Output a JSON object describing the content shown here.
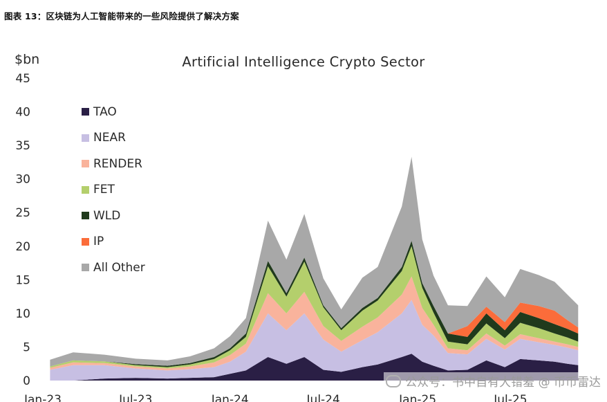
{
  "heading": "图表 13：区块链为人工智能带来的一些风险提供了解决方案",
  "watermark": "公众号：书中自有大错羞 @ 币币雷达",
  "chart_data": {
    "type": "area",
    "stacked": true,
    "title": "Artificial Intelligence Crypto Sector",
    "ylabel": "$bn",
    "ylim": [
      0,
      45
    ],
    "yticks": [
      0,
      5,
      10,
      15,
      20,
      25,
      30,
      35,
      40,
      45
    ],
    "xlim": [
      "2023-01-01",
      "2025-11-15"
    ],
    "xticks": [
      {
        "label": "Jan-23",
        "date": "2023-01-01"
      },
      {
        "label": "Jul-23",
        "date": "2023-07-01"
      },
      {
        "label": "Jan-24",
        "date": "2024-01-01"
      },
      {
        "label": "Jul-24",
        "date": "2024-07-01"
      },
      {
        "label": "Jan-25",
        "date": "2025-01-01"
      },
      {
        "label": "Jul-25",
        "date": "2025-07-01"
      }
    ],
    "grid": false,
    "legend_position": "upper-left",
    "x": [
      "2023-01-15",
      "2023-03-01",
      "2023-05-01",
      "2023-07-01",
      "2023-09-01",
      "2023-10-15",
      "2023-12-01",
      "2024-01-01",
      "2024-02-01",
      "2024-03-15",
      "2024-04-20",
      "2024-05-25",
      "2024-07-01",
      "2024-08-05",
      "2024-09-15",
      "2024-10-15",
      "2024-12-01",
      "2024-12-20",
      "2025-01-10",
      "2025-02-01",
      "2025-03-01",
      "2025-04-08",
      "2025-05-15",
      "2025-06-20",
      "2025-07-20",
      "2025-08-25",
      "2025-09-25",
      "2025-10-20",
      "2025-11-10"
    ],
    "series": [
      {
        "name": "TAO",
        "color": "#2a1f45",
        "values": [
          0,
          0,
          0.3,
          0.4,
          0.3,
          0.4,
          0.5,
          1.0,
          1.5,
          3.5,
          2.5,
          3.5,
          1.6,
          1.3,
          2.0,
          2.4,
          3.5,
          4.0,
          2.8,
          2.2,
          1.5,
          1.6,
          3.0,
          2.0,
          3.2,
          3.0,
          2.8,
          2.5,
          2.3
        ]
      },
      {
        "name": "NEAR",
        "color": "#c7bfe3",
        "values": [
          1.6,
          2.3,
          2.0,
          1.4,
          1.2,
          1.3,
          1.5,
          1.8,
          2.8,
          6.5,
          5.0,
          6.5,
          4.5,
          3.0,
          4.0,
          4.8,
          6.5,
          8.0,
          5.5,
          4.5,
          2.6,
          2.3,
          3.2,
          2.6,
          3.0,
          2.7,
          2.5,
          2.4,
          2.2
        ]
      },
      {
        "name": "RENDER",
        "color": "#f9b39c",
        "values": [
          0.3,
          0.4,
          0.3,
          0.3,
          0.3,
          0.4,
          0.7,
          1.0,
          1.2,
          3.0,
          2.5,
          3.2,
          2.0,
          1.6,
          2.0,
          2.2,
          2.8,
          3.5,
          2.5,
          1.6,
          0.7,
          0.6,
          0.8,
          0.6,
          0.7,
          0.6,
          0.5,
          0.5,
          0.5
        ]
      },
      {
        "name": "FET",
        "color": "#b4cf6c",
        "values": [
          0.2,
          0.3,
          0.25,
          0.2,
          0.2,
          0.3,
          0.5,
          0.7,
          1.0,
          4.0,
          2.5,
          4.5,
          2.8,
          1.6,
          2.4,
          2.5,
          3.5,
          4.5,
          3.0,
          1.8,
          1.0,
          0.9,
          1.5,
          1.1,
          1.7,
          1.5,
          1.2,
          1.0,
          0.8
        ]
      },
      {
        "name": "WLD",
        "color": "#203a1c",
        "values": [
          0,
          0,
          0,
          0.15,
          0.2,
          0.2,
          0.3,
          0.3,
          0.5,
          0.8,
          0.5,
          0.6,
          0.3,
          0.3,
          0.4,
          0.4,
          0.6,
          0.8,
          0.7,
          1.0,
          1.2,
          1.1,
          1.5,
          1.2,
          1.6,
          1.5,
          1.4,
          1.3,
          1.2
        ]
      },
      {
        "name": "IP",
        "color": "#fb6c3a",
        "values": [
          0,
          0,
          0,
          0,
          0,
          0,
          0,
          0,
          0,
          0,
          0,
          0,
          0,
          0,
          0,
          0,
          0,
          0,
          0,
          0,
          0,
          1.6,
          1.0,
          1.2,
          1.4,
          1.8,
          2.0,
          1.3,
          0.9
        ]
      },
      {
        "name": "All Other",
        "color": "#a8a8a8",
        "values": [
          1.0,
          1.2,
          1.0,
          0.8,
          0.8,
          1.0,
          1.3,
          1.8,
          2.3,
          6.0,
          5.0,
          6.5,
          4.0,
          2.8,
          4.5,
          4.6,
          9.0,
          12.5,
          6.5,
          4.5,
          4.2,
          3.0,
          4.5,
          3.7,
          5.0,
          4.6,
          4.3,
          3.8,
          3.3
        ]
      }
    ]
  }
}
